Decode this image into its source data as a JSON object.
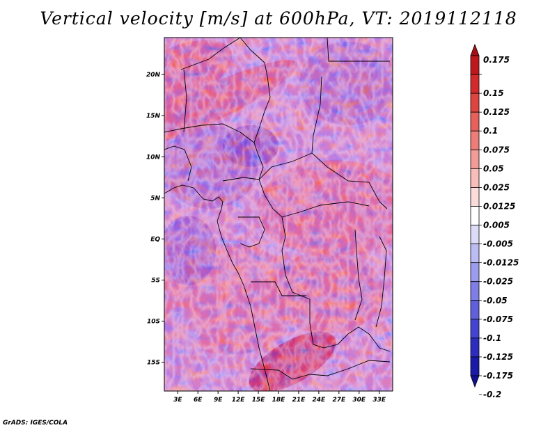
{
  "title": "Vertical velocity [m/s] at 600hPa, VT: 2019112118",
  "footer": "GrADS: IGES/COLA",
  "chart_data": {
    "type": "heatmap",
    "variable": "Vertical velocity",
    "units": "m/s",
    "level": "600hPa",
    "valid_time": "2019112118",
    "lon_range": [
      1,
      35
    ],
    "lat_range": [
      -18.5,
      24.5
    ],
    "x_ticks": [
      "3E",
      "6E",
      "9E",
      "12E",
      "15E",
      "18E",
      "21E",
      "24E",
      "27E",
      "30E",
      "33E"
    ],
    "x_tick_values": [
      3,
      6,
      9,
      12,
      15,
      18,
      21,
      24,
      27,
      30,
      33
    ],
    "y_ticks": [
      "20N",
      "15N",
      "10N",
      "5N",
      "EQ",
      "5S",
      "10S",
      "15S"
    ],
    "y_tick_values": [
      20,
      15,
      10,
      5,
      0,
      -5,
      -10,
      -15
    ],
    "colorbar": {
      "labels": [
        "0.175",
        "0.15",
        "0.125",
        "0.1",
        "0.075",
        "0.05",
        "0.025",
        "0.0125",
        "0.005",
        "-0.005",
        "-0.0125",
        "-0.025",
        "-0.05",
        "-0.075",
        "-0.1",
        "-0.125",
        "-0.175",
        "-0.2"
      ],
      "colors": [
        "#a50f15",
        "#c0171c",
        "#d42a2b",
        "#e0443f",
        "#e9605a",
        "#ee7c77",
        "#f39b97",
        "#f8bcb9",
        "#fcdcda",
        "#ffffff",
        "#dcdcf8",
        "#bcbcf4",
        "#9c9cee",
        "#7e7ee6",
        "#6060dd",
        "#4444d2",
        "#2c2cc0",
        "#1a1aa8",
        "#101090"
      ]
    },
    "grid": false,
    "legend_position": "right"
  }
}
